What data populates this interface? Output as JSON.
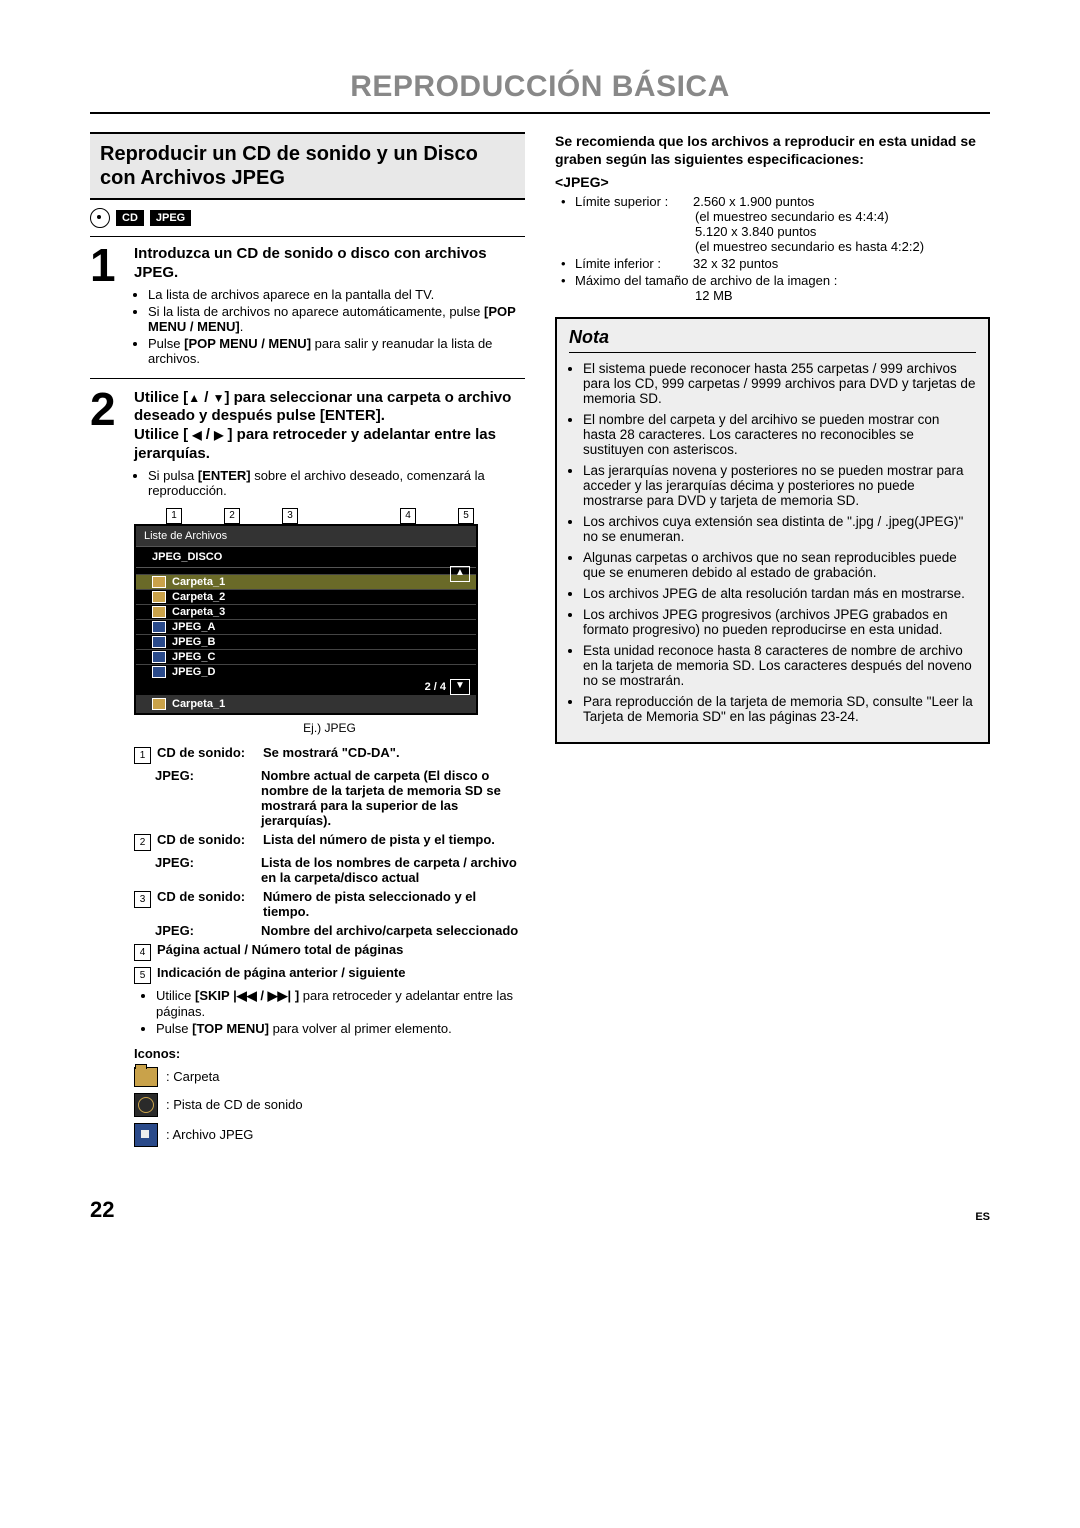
{
  "page_title": "REPRODUCCIÓN BÁSICA",
  "page_number": "22",
  "lang_code": "ES",
  "section_head": "Reproducir un CD de sonido y un Disco con Archivos JPEG",
  "badges": {
    "cd": "CD",
    "jpeg": "JPEG"
  },
  "step1": {
    "num": "1",
    "heading": "Introduzca un CD de sonido o disco con archivos JPEG.",
    "bullet1": "La lista de archivos aparece en la pantalla del TV.",
    "bullet2_a": "Si la lista de archivos no aparece automáticamente, pulse ",
    "bullet2_b": "[POP MENU / MENU]",
    "bullet2_c": ".",
    "bullet3_a": "Pulse ",
    "bullet3_b": "[POP MENU / MENU]",
    "bullet3_c": " para salir y reanudar la lista de archivos."
  },
  "step2": {
    "num": "2",
    "heading_a": "Utilice [",
    "heading_b": " / ",
    "heading_c": "] para seleccionar una carpeta o archivo deseado y después pulse [ENTER].",
    "heading2_a": "Utilice [ ",
    "heading2_b": " / ",
    "heading2_c": " ] para retroceder y adelantar entre las jerarquías.",
    "sub_a": "Si pulsa ",
    "sub_b": "[ENTER]",
    "sub_c": " sobre el archivo deseado, comenzará la reproducción."
  },
  "markers": [
    "1",
    "2",
    "3",
    "4",
    "5"
  ],
  "filebox": {
    "title": "Liste de Archivos",
    "disc": "JPEG_DISCO",
    "rows": [
      {
        "type": "folder",
        "name": "Carpeta_1",
        "sel": true
      },
      {
        "type": "folder",
        "name": "Carpeta_2"
      },
      {
        "type": "folder",
        "name": "Carpeta_3"
      },
      {
        "type": "jpeg",
        "name": "JPEG_A"
      },
      {
        "type": "jpeg",
        "name": "JPEG_B"
      },
      {
        "type": "jpeg",
        "name": "JPEG_C"
      },
      {
        "type": "jpeg",
        "name": "JPEG_D"
      }
    ],
    "page": "2 /   4",
    "foot": "Carpeta_1",
    "up": "▲",
    "dn": "▼"
  },
  "caption": "Ej.) JPEG",
  "legend": {
    "r1": {
      "n": "1",
      "lbl": "CD de sonido:",
      "txt": "Se mostrará \"CD-DA\"."
    },
    "r1b": {
      "lbl": "JPEG:",
      "txt": "Nombre actual de carpeta (El disco o nombre de la tarjeta de memoria SD se mostrará para la superior de las jerarquías)."
    },
    "r2": {
      "n": "2",
      "lbl": "CD de sonido:",
      "txt": "Lista del número de pista y el tiempo."
    },
    "r2b": {
      "lbl": "JPEG:",
      "txt": "Lista de los nombres de carpeta / archivo en la carpeta/disco actual"
    },
    "r3": {
      "n": "3",
      "lbl": "CD de sonido:",
      "txt": "Número de pista seleccionado y el tiempo."
    },
    "r3b": {
      "lbl": "JPEG:",
      "txt": "Nombre del archivo/carpeta seleccionado"
    },
    "r4": {
      "n": "4",
      "txt": "Página actual / Número total de páginas"
    },
    "r5": {
      "n": "5",
      "txt": "Indicación de página anterior / siguiente"
    },
    "b1_a": "Utilice ",
    "b1_b": "[SKIP ",
    "b1_c": " / ",
    "b1_d": " ]",
    "b1_e": " para retroceder y adelantar entre las páginas.",
    "b2_a": "Pulse ",
    "b2_b": "[TOP MENU]",
    "b2_c": " para volver al primer elemento."
  },
  "icons": {
    "head": "Iconos:",
    "folder": ": Carpeta",
    "cd": ": Pista de CD de sonido",
    "jpeg": ": Archivo JPEG"
  },
  "right": {
    "rec_head": "Se recomienda que los archivos a reproducir en esta unidad se graben según las siguientes especificaciones:",
    "jpeg_tag": "<JPEG>",
    "sup_lbl": "Límite superior :",
    "sup1": "2.560 x 1.900 puntos",
    "sup2": "(el muestreo secundario es 4:4:4)",
    "sup3": "5.120 x 3.840 puntos",
    "sup4": "(el muestreo secundario es hasta 4:2:2)",
    "inf_lbl": "Límite inferior :",
    "inf1": "32 x 32 puntos",
    "max": "Máximo del tamaño de archivo de la imagen :",
    "max_v": "12 MB"
  },
  "nota": {
    "title": "Nota",
    "items": [
      "El sistema puede reconocer hasta 255 carpetas / 999 archivos para los CD, 999 carpetas / 9999 archivos para DVD y tarjetas de memoria SD.",
      "El nombre del carpeta y del arcihivo se pueden mostrar con hasta 28 caracteres. Los caracteres no reconocibles se sustituyen con asteriscos.",
      "Las jerarquías novena y posteriores no se pueden mostrar para acceder y las jerarquías décima y posteriores no puede mostrarse para DVD y tarjeta de memoria SD.",
      "Los archivos cuya extensión sea distinta de \".jpg / .jpeg(JPEG)\" no se enumeran.",
      "Algunas carpetas o archivos que no sean reproducibles puede que se enumeren debido al estado de grabación.",
      "Los archivos JPEG de alta resolución tardan más en mostrarse.",
      "Los archivos JPEG progresivos (archivos JPEG grabados en formato progresivo) no pueden reproducirse en esta unidad.",
      "Esta unidad reconoce hasta 8 caracteres de nombre de archivo en la tarjeta de memoria SD. Los caracteres después del noveno no se mostrarán.",
      "Para reproducción de la tarjeta de memoria SD, consulte \"Leer la Tarjeta de Memoria SD\" en las páginas 23-24."
    ]
  },
  "glyphs": {
    "up": "▲",
    "down": "▼",
    "left": "◀",
    "right": "▶",
    "skipback": "|◀◀",
    "skipfwd": "▶▶|"
  }
}
